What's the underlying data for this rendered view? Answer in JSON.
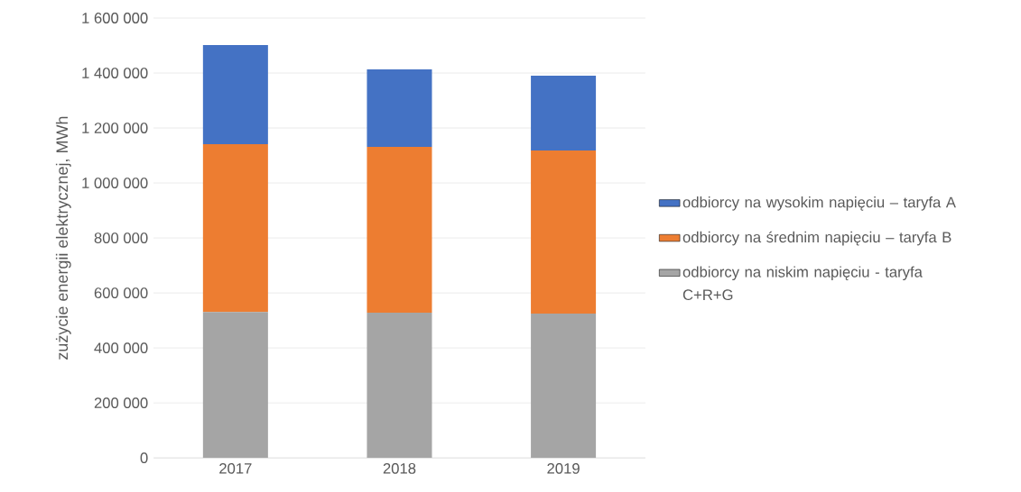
{
  "chart_data": {
    "type": "bar",
    "stacked": true,
    "ylabel": "zużycie energii elektrycznej, MWh",
    "categories": [
      "2017",
      "2018",
      "2019"
    ],
    "series": [
      {
        "name": "odbiorcy na niskim napięciu - taryfa C+R+G",
        "color": "#a5a5a5",
        "values": [
          531000,
          528000,
          525000
        ]
      },
      {
        "name": "odbiorcy na średnim napięciu – taryfa B",
        "color": "#ed7d31",
        "values": [
          610000,
          603000,
          593000
        ]
      },
      {
        "name": "odbiorcy na wysokim napięciu – taryfa A",
        "color": "#4472c4",
        "values": [
          361000,
          282000,
          272000
        ]
      }
    ],
    "ylim": [
      0,
      1600000
    ],
    "yticks": [
      {
        "value": 0,
        "label": "0"
      },
      {
        "value": 200000,
        "label": "200 000"
      },
      {
        "value": 400000,
        "label": "400 000"
      },
      {
        "value": 600000,
        "label": "600 000"
      },
      {
        "value": 800000,
        "label": "800 000"
      },
      {
        "value": 1000000,
        "label": "1 000 000"
      },
      {
        "value": 1200000,
        "label": "1 200 000"
      },
      {
        "value": 1400000,
        "label": "1 400 000"
      },
      {
        "value": 1600000,
        "label": "1 600 000"
      }
    ],
    "grid": "y",
    "legend": "right"
  }
}
